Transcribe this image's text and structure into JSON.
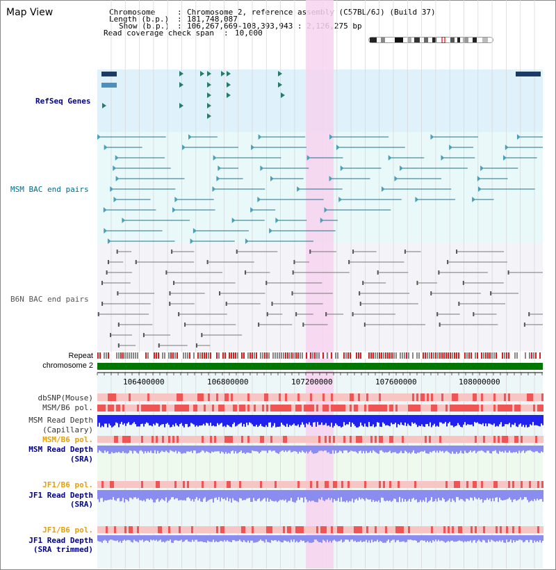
{
  "app": {
    "title": "Map View"
  },
  "info": {
    "chromosome_label": "Chromosome",
    "chromosome_value": "Chromosome 2, reference assembly (C57BL/6J) (Build 37)",
    "length_label": "Length (b.p.)",
    "length_value": "181,748,087",
    "show_label": "Show (b.p.)",
    "show_value": "106,267,669-108,393,943 : 2,126,275 bp",
    "coverage_label": "Read coverage check span",
    "coverage_value": "10,000"
  },
  "tracks": {
    "refseq": "RefSeq Genes",
    "msm_bac": "MSM BAC end pairs",
    "b6n_bac": "B6N BAC end pairs",
    "repeat": "Repeat",
    "chromosome": "chromosome 2",
    "dbsnp": "dbSNP(Mouse)",
    "msm_b6_pol_1": "MSM/B6 pol.",
    "msm_read_depth_cap_1": "MSM Read Depth",
    "msm_read_depth_cap_2": "(Capillary)",
    "msm_b6_pol_2": "MSM/B6 pol.",
    "msm_read_depth_sra_1": "MSM Read Depth",
    "msm_read_depth_sra_2": "(SRA)",
    "jf1_b6_pol_1": "JF1/B6 pol.",
    "jf1_read_depth_sra_1": "JF1 Read Depth",
    "jf1_read_depth_sra_2": "(SRA)",
    "jf1_b6_pol_2": "JF1/B6 pol.",
    "jf1_read_depth_trim_1": "JF1 Read Depth",
    "jf1_read_depth_trim_2": "(SRA trimmed)"
  },
  "ruler": {
    "ticks": [
      "106400000",
      "106800000",
      "107200000",
      "107600000",
      "108000000"
    ]
  },
  "colors": {
    "refseq_bg": "#dff1fa",
    "msm_bg": "#e9f9f9",
    "b6n_bg": "#f3f3f8",
    "highlight": "#f7d4f0",
    "chromosome_bar": "#007700",
    "depth_blue": "#2222ee",
    "depth_light": "#8a8cf0",
    "pol_red": "#ef5555",
    "pol_pink": "#f8c5c5",
    "msm_pair": "#1f6f8b",
    "b6n_pair": "#777777"
  }
}
